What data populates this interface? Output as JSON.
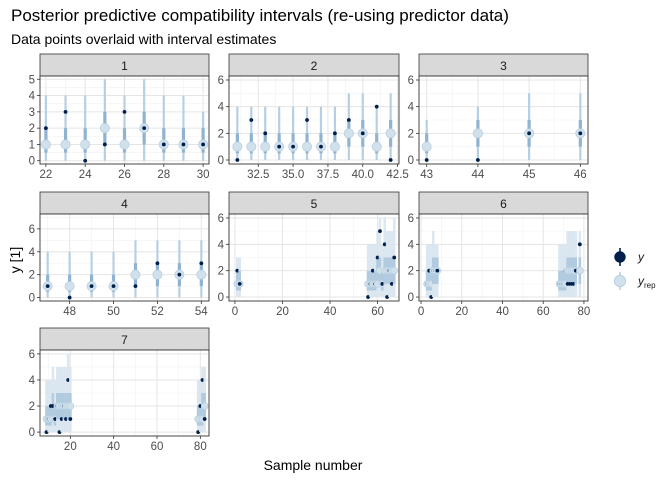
{
  "title": "Posterior predictive compatibility intervals (re-using predictor data)",
  "subtitle": "Data points overlaid with interval estimates",
  "chart_data": {
    "type": "scatter",
    "xlabel": "Sample number",
    "ylabel": "y [1]",
    "grid": true,
    "legend_position": "right",
    "legend": [
      {
        "key": "y",
        "label": "y",
        "color": "#011f4b"
      },
      {
        "key": "yrep",
        "label": "y",
        "subscript": "rep",
        "color": "#d1e1ec"
      }
    ],
    "colors": {
      "y": "#011f4b",
      "yrep": "#d1e1ec",
      "outer": "#d8e4ee",
      "inner": "#a8c4dc",
      "strip": "#d9d9d9"
    },
    "panels": [
      {
        "label": "1",
        "xlim": [
          21.7,
          30.3
        ],
        "ylim": [
          -0.2,
          5.2
        ],
        "xticks": [
          22,
          24,
          26,
          28,
          30
        ],
        "xticklabels": [
          "22",
          "24",
          "26",
          "28",
          "30"
        ],
        "yticks": [
          0,
          1,
          2,
          3,
          4,
          5
        ],
        "yticklabels": [
          "0",
          "1",
          "2",
          "3",
          "4",
          "5"
        ],
        "points": [
          {
            "x": 22,
            "y": 2,
            "yrep": 1,
            "lo": 0,
            "q25": 0.5,
            "q75": 2,
            "hi": 4
          },
          {
            "x": 23,
            "y": 3,
            "yrep": 1,
            "lo": 0,
            "q25": 0.5,
            "q75": 2,
            "hi": 4
          },
          {
            "x": 24,
            "y": 0,
            "yrep": 1,
            "lo": 0,
            "q25": 0.5,
            "q75": 2,
            "hi": 4
          },
          {
            "x": 25,
            "y": 1,
            "yrep": 2,
            "lo": 0,
            "q25": 1,
            "q75": 3,
            "hi": 5
          },
          {
            "x": 26,
            "y": 3,
            "yrep": 1,
            "lo": 0,
            "q25": 0.5,
            "q75": 2,
            "hi": 4
          },
          {
            "x": 27,
            "y": 2,
            "yrep": 2,
            "lo": 0,
            "q25": 1,
            "q75": 3,
            "hi": 5
          },
          {
            "x": 28,
            "y": 1,
            "yrep": 1,
            "lo": 0,
            "q25": 0.5,
            "q75": 2,
            "hi": 4
          },
          {
            "x": 29,
            "y": 1,
            "yrep": 1,
            "lo": 0,
            "q25": 0.5,
            "q75": 2,
            "hi": 4
          },
          {
            "x": 30,
            "y": 1,
            "yrep": 1,
            "lo": 0,
            "q25": 0.5,
            "q75": 2,
            "hi": 3
          }
        ]
      },
      {
        "label": "2",
        "xlim": [
          30.4,
          42.6
        ],
        "ylim": [
          -0.3,
          6.3
        ],
        "xticks": [
          32.5,
          35.0,
          37.5,
          40.0,
          42.5
        ],
        "xticklabels": [
          "32.5",
          "35.0",
          "37.5",
          "40.0",
          "42.5"
        ],
        "yticks": [
          0,
          2,
          4,
          6
        ],
        "yticklabels": [
          "0",
          "2",
          "4",
          "6"
        ],
        "points": [
          {
            "x": 31,
            "y": 0,
            "yrep": 1,
            "lo": 0,
            "q25": 0.5,
            "q75": 2,
            "hi": 4
          },
          {
            "x": 32,
            "y": 3,
            "yrep": 1,
            "lo": 0,
            "q25": 0.5,
            "q75": 2,
            "hi": 4
          },
          {
            "x": 33,
            "y": 2,
            "yrep": 1,
            "lo": 0,
            "q25": 0.5,
            "q75": 2,
            "hi": 4
          },
          {
            "x": 34,
            "y": 1,
            "yrep": 1,
            "lo": 0,
            "q25": 0.5,
            "q75": 2,
            "hi": 4
          },
          {
            "x": 35,
            "y": 1,
            "yrep": 1,
            "lo": 0,
            "q25": 0.5,
            "q75": 2,
            "hi": 4
          },
          {
            "x": 36,
            "y": 3,
            "yrep": 1,
            "lo": 0,
            "q25": 0.5,
            "q75": 2,
            "hi": 4
          },
          {
            "x": 37,
            "y": 1,
            "yrep": 1,
            "lo": 0,
            "q25": 0.5,
            "q75": 2,
            "hi": 4
          },
          {
            "x": 38,
            "y": 2,
            "yrep": 1,
            "lo": 0,
            "q25": 0.5,
            "q75": 2,
            "hi": 4
          },
          {
            "x": 39,
            "y": 3,
            "yrep": 2,
            "lo": 0,
            "q25": 1,
            "q75": 3,
            "hi": 5
          },
          {
            "x": 40,
            "y": 2,
            "yrep": 2,
            "lo": 0,
            "q25": 1,
            "q75": 3,
            "hi": 5
          },
          {
            "x": 41,
            "y": 4,
            "yrep": 1,
            "lo": 0,
            "q25": 0.5,
            "q75": 2,
            "hi": 4
          },
          {
            "x": 42,
            "y": 0,
            "yrep": 2,
            "lo": 0,
            "q25": 1,
            "q75": 3,
            "hi": 5
          }
        ]
      },
      {
        "label": "3",
        "xlim": [
          42.85,
          46.15
        ],
        "ylim": [
          -0.3,
          6.3
        ],
        "xticks": [
          43,
          44,
          45,
          46
        ],
        "xticklabels": [
          "43",
          "44",
          "45",
          "46"
        ],
        "yticks": [
          0,
          2,
          4,
          6
        ],
        "yticklabels": [
          "0",
          "2",
          "4",
          "6"
        ],
        "points": [
          {
            "x": 43,
            "y": 0,
            "yrep": 1,
            "lo": 0,
            "q25": 0.5,
            "q75": 2,
            "hi": 3
          },
          {
            "x": 44,
            "y": 0,
            "yrep": 2,
            "lo": 0,
            "q25": 1,
            "q75": 3,
            "hi": 4
          },
          {
            "x": 45,
            "y": 2,
            "yrep": 2,
            "lo": 0,
            "q25": 1,
            "q75": 3,
            "hi": 5
          },
          {
            "x": 46,
            "y": 2,
            "yrep": 2,
            "lo": 0,
            "q25": 1,
            "q75": 3,
            "hi": 5
          }
        ]
      },
      {
        "label": "4",
        "xlim": [
          46.65,
          54.35
        ],
        "ylim": [
          -0.3,
          7.3
        ],
        "xticks": [
          48,
          50,
          52,
          54
        ],
        "xticklabels": [
          "48",
          "50",
          "52",
          "54"
        ],
        "yticks": [
          0,
          2,
          4,
          6
        ],
        "yticklabels": [
          "0",
          "2",
          "4",
          "6"
        ],
        "points": [
          {
            "x": 47,
            "y": 1,
            "yrep": 1,
            "lo": 0,
            "q25": 0.5,
            "q75": 2,
            "hi": 4
          },
          {
            "x": 48,
            "y": 0,
            "yrep": 1,
            "lo": 0,
            "q25": 0.5,
            "q75": 2,
            "hi": 4
          },
          {
            "x": 49,
            "y": 1,
            "yrep": 1,
            "lo": 0,
            "q25": 0.5,
            "q75": 2,
            "hi": 4
          },
          {
            "x": 50,
            "y": 1,
            "yrep": 1,
            "lo": 0,
            "q25": 0.5,
            "q75": 2,
            "hi": 4
          },
          {
            "x": 51,
            "y": 1,
            "yrep": 2,
            "lo": 0,
            "q25": 1,
            "q75": 3,
            "hi": 5
          },
          {
            "x": 52,
            "y": 3,
            "yrep": 2,
            "lo": 0,
            "q25": 1,
            "q75": 3,
            "hi": 5
          },
          {
            "x": 53,
            "y": 2,
            "yrep": 2,
            "lo": 0,
            "q25": 1,
            "q75": 3,
            "hi": 5
          },
          {
            "x": 54,
            "y": 3,
            "yrep": 2,
            "lo": 0,
            "q25": 1,
            "q75": 3,
            "hi": 5
          }
        ]
      },
      {
        "label": "5",
        "xlim": [
          -2.5,
          69
        ],
        "ylim": [
          -0.3,
          6.3
        ],
        "xticks": [
          0,
          20,
          40,
          60
        ],
        "xticklabels": [
          "0",
          "20",
          "40",
          "60"
        ],
        "yticks": [
          0,
          2,
          4,
          6
        ],
        "yticklabels": [
          "0",
          "2",
          "4",
          "6"
        ],
        "points": [
          {
            "x": 1,
            "y": 2,
            "yrep": 1,
            "lo": 0,
            "q25": 0.5,
            "q75": 2,
            "hi": 3
          },
          {
            "x": 2,
            "y": 1,
            "yrep": 1,
            "lo": 0,
            "q25": 0.5,
            "q75": 2,
            "hi": 3
          },
          {
            "x": 56,
            "y": 0,
            "yrep": 1,
            "lo": 0,
            "q25": 0.5,
            "q75": 2,
            "hi": 4
          },
          {
            "x": 57,
            "y": 1,
            "yrep": 1,
            "lo": 0,
            "q25": 0.5,
            "q75": 2,
            "hi": 4
          },
          {
            "x": 58,
            "y": 2,
            "yrep": 1,
            "lo": 0,
            "q25": 0.5,
            "q75": 2,
            "hi": 4
          },
          {
            "x": 59,
            "y": 1,
            "yrep": 1,
            "lo": 0,
            "q25": 0.5,
            "q75": 2,
            "hi": 4
          },
          {
            "x": 60,
            "y": 3,
            "yrep": 1,
            "lo": 0,
            "q25": 1,
            "q75": 3,
            "hi": 5
          },
          {
            "x": 61,
            "y": 5,
            "yrep": 2,
            "lo": 0,
            "q25": 1,
            "q75": 3,
            "hi": 6
          },
          {
            "x": 62,
            "y": 1,
            "yrep": 1,
            "lo": 0,
            "q25": 0.5,
            "q75": 2,
            "hi": 4
          },
          {
            "x": 63,
            "y": 4,
            "yrep": 2,
            "lo": 0,
            "q25": 1,
            "q75": 3,
            "hi": 6
          },
          {
            "x": 64,
            "y": 0,
            "yrep": 2,
            "lo": 0,
            "q25": 1,
            "q75": 3,
            "hi": 5
          },
          {
            "x": 65,
            "y": 2,
            "yrep": 2,
            "lo": 0,
            "q25": 1,
            "q75": 3,
            "hi": 5
          },
          {
            "x": 66,
            "y": 1,
            "yrep": 2,
            "lo": 0,
            "q25": 1,
            "q75": 3,
            "hi": 5
          },
          {
            "x": 67,
            "y": 3,
            "yrep": 2,
            "lo": 0,
            "q25": 1,
            "q75": 3,
            "hi": 6
          }
        ]
      },
      {
        "label": "6",
        "xlim": [
          -1,
          82
        ],
        "ylim": [
          -0.3,
          6.3
        ],
        "xticks": [
          0,
          20,
          40,
          60,
          80
        ],
        "xticklabels": [
          "0",
          "20",
          "40",
          "60",
          "80"
        ],
        "yticks": [
          0,
          2,
          4,
          6
        ],
        "yticklabels": [
          "0",
          "2",
          "4",
          "6"
        ],
        "points": [
          {
            "x": 3,
            "y": 1,
            "yrep": 1,
            "lo": 0,
            "q25": 0.5,
            "q75": 2,
            "hi": 4
          },
          {
            "x": 4,
            "y": 2,
            "yrep": 1,
            "lo": 0,
            "q25": 0.5,
            "q75": 2,
            "hi": 4
          },
          {
            "x": 5,
            "y": 0,
            "yrep": 1,
            "lo": 0,
            "q25": 0.5,
            "q75": 2,
            "hi": 4
          },
          {
            "x": 6,
            "y": 2,
            "yrep": 2,
            "lo": 0,
            "q25": 1,
            "q75": 3,
            "hi": 5
          },
          {
            "x": 7,
            "y": 2,
            "yrep": 2,
            "lo": 0,
            "q25": 1,
            "q75": 3,
            "hi": 4
          },
          {
            "x": 8,
            "y": 2,
            "yrep": 2,
            "lo": 0,
            "q25": 1,
            "q75": 3,
            "hi": 4
          },
          {
            "x": 68,
            "y": 1,
            "yrep": 1,
            "lo": 0,
            "q25": 0.5,
            "q75": 2,
            "hi": 4
          },
          {
            "x": 69,
            "y": 1,
            "yrep": 1,
            "lo": 0,
            "q25": 0.5,
            "q75": 2,
            "hi": 4
          },
          {
            "x": 70,
            "y": 1,
            "yrep": 1,
            "lo": 0,
            "q25": 0.5,
            "q75": 2,
            "hi": 4
          },
          {
            "x": 71,
            "y": 2,
            "yrep": 1,
            "lo": 0,
            "q25": 0.5,
            "q75": 2,
            "hi": 4
          },
          {
            "x": 72,
            "y": 1,
            "yrep": 2,
            "lo": 0,
            "q25": 1,
            "q75": 3,
            "hi": 5
          },
          {
            "x": 73,
            "y": 1,
            "yrep": 2,
            "lo": 0,
            "q25": 1,
            "q75": 3,
            "hi": 5
          },
          {
            "x": 74,
            "y": 1,
            "yrep": 2,
            "lo": 0,
            "q25": 1,
            "q75": 3,
            "hi": 5
          },
          {
            "x": 75,
            "y": 1,
            "yrep": 2,
            "lo": 0,
            "q25": 1,
            "q75": 3,
            "hi": 5
          },
          {
            "x": 76,
            "y": 2,
            "yrep": 2,
            "lo": 0,
            "q25": 1,
            "q75": 3,
            "hi": 5
          },
          {
            "x": 78,
            "y": 4,
            "yrep": 2,
            "lo": 0,
            "q25": 1,
            "q75": 3,
            "hi": 5
          }
        ]
      },
      {
        "label": "7",
        "xlim": [
          6,
          84
        ],
        "ylim": [
          -0.3,
          6.3
        ],
        "xticks": [
          20,
          40,
          60,
          80
        ],
        "xticklabels": [
          "20",
          "40",
          "60",
          "80"
        ],
        "yticks": [
          0,
          2,
          4,
          6
        ],
        "yticklabels": [
          "0",
          "2",
          "4",
          "6"
        ],
        "points": [
          {
            "x": 9,
            "y": 0,
            "yrep": 1,
            "lo": 0,
            "q25": 0.5,
            "q75": 2,
            "hi": 4
          },
          {
            "x": 10,
            "y": 1,
            "yrep": 1,
            "lo": 0,
            "q25": 0.5,
            "q75": 2,
            "hi": 4
          },
          {
            "x": 11,
            "y": 2,
            "yrep": 1,
            "lo": 0,
            "q25": 0.5,
            "q75": 2,
            "hi": 4
          },
          {
            "x": 12,
            "y": 2,
            "yrep": 1,
            "lo": 0,
            "q25": 1,
            "q75": 3,
            "hi": 5
          },
          {
            "x": 13,
            "y": 1,
            "yrep": 1,
            "lo": 0,
            "q25": 0.5,
            "q75": 2,
            "hi": 4
          },
          {
            "x": 14,
            "y": 2,
            "yrep": 2,
            "lo": 0,
            "q25": 1,
            "q75": 3,
            "hi": 5
          },
          {
            "x": 15,
            "y": 0,
            "yrep": 2,
            "lo": 0,
            "q25": 1,
            "q75": 3,
            "hi": 5
          },
          {
            "x": 16,
            "y": 1,
            "yrep": 2,
            "lo": 0,
            "q25": 1,
            "q75": 3,
            "hi": 5
          },
          {
            "x": 17,
            "y": 2,
            "yrep": 2,
            "lo": 0,
            "q25": 1,
            "q75": 3,
            "hi": 5
          },
          {
            "x": 18,
            "y": 1,
            "yrep": 2,
            "lo": 0,
            "q25": 1,
            "q75": 3,
            "hi": 5
          },
          {
            "x": 19,
            "y": 4,
            "yrep": 2,
            "lo": 0,
            "q25": 1,
            "q75": 3,
            "hi": 6
          },
          {
            "x": 20,
            "y": 1,
            "yrep": 2,
            "lo": 0,
            "q25": 1,
            "q75": 3,
            "hi": 5
          },
          {
            "x": 79,
            "y": 0,
            "yrep": 1,
            "lo": 0,
            "q25": 0.5,
            "q75": 2,
            "hi": 4
          },
          {
            "x": 80,
            "y": 2,
            "yrep": 1,
            "lo": 0,
            "q25": 0.5,
            "q75": 2,
            "hi": 4
          },
          {
            "x": 81,
            "y": 4,
            "yrep": 1,
            "lo": 0,
            "q25": 0.5,
            "q75": 3,
            "hi": 5
          },
          {
            "x": 82,
            "y": 1,
            "yrep": 2,
            "lo": 0,
            "q25": 1,
            "q75": 3,
            "hi": 5
          }
        ]
      }
    ]
  }
}
